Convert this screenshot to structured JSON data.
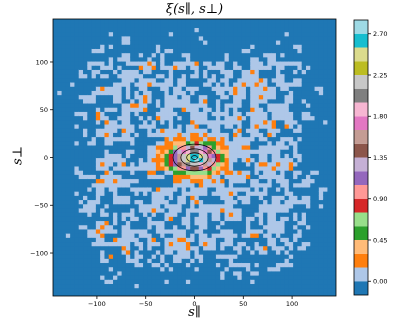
{
  "chart_data": {
    "type": "heatmap",
    "title": "ξ(s∥, s⊥)",
    "xlabel": "s∥",
    "ylabel": "s⊥",
    "xlim": [
      -145,
      145
    ],
    "ylim": [
      -145,
      145
    ],
    "x_ticks": [
      -100,
      -50,
      0,
      50,
      100
    ],
    "y_ticks": [
      -100,
      -50,
      0,
      50,
      100
    ],
    "x_tick_labels": [
      "−100",
      "−50",
      "0",
      "50",
      "100"
    ],
    "y_tick_labels": [
      "−100",
      "−50",
      "0",
      "50",
      "100"
    ],
    "colorbar": {
      "ticks": [
        0.0,
        0.45,
        0.9,
        1.35,
        1.8,
        2.25,
        2.7
      ],
      "tick_labels": [
        "0.00",
        "0.45",
        "0.90",
        "1.35",
        "1.80",
        "2.25",
        "2.70"
      ],
      "levels": [
        -0.15,
        0.0,
        0.15,
        0.3,
        0.45,
        0.6,
        0.75,
        0.9,
        1.05,
        1.2,
        1.35,
        1.5,
        1.65,
        1.8,
        1.95,
        2.1,
        2.25,
        2.4,
        2.55,
        2.7,
        2.85
      ],
      "colors": [
        "#1f77b4",
        "#aec7e8",
        "#ff7f0e",
        "#ffbb78",
        "#2ca02c",
        "#98df8a",
        "#d62728",
        "#ff9896",
        "#9467bd",
        "#c5b0d5",
        "#8c564b",
        "#c49c94",
        "#e377c2",
        "#f7b6d2",
        "#7f7f7f",
        "#c7c7c7",
        "#bcbd22",
        "#dbdb8d",
        "#17becf",
        "#9edae5"
      ]
    },
    "colormap": "tab20",
    "grid": false
  }
}
